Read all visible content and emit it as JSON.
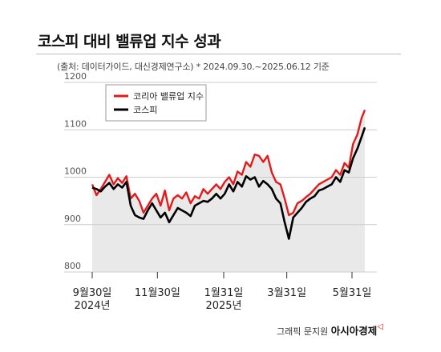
{
  "header": {
    "title": "코스피 대비 밸류업 지수 성과",
    "subtitle": "(출처: 데이터가이드, 대신경제연구소) * 2024.09.30.~2025.06.12 기준"
  },
  "footer": {
    "credit": "그래픽 문지원",
    "brand": "아시아경제",
    "brand_mark": "◁"
  },
  "colors": {
    "valueup": "#e31a1c",
    "kospi": "#000000",
    "fill": "#e9e9e9",
    "grid": "#cccccc"
  },
  "chart_data": {
    "type": "line",
    "title": "코스피 대비 밸류업 지수 성과",
    "ylim": [
      800,
      1200
    ],
    "yticks": [
      800,
      900,
      1000,
      1100,
      1200
    ],
    "x_range": [
      "2024-09-30",
      "2025-06-12"
    ],
    "x_tick_labels": [
      {
        "date": "2024-09-30",
        "lines": [
          "9월30일",
          "2024년"
        ]
      },
      {
        "date": "2024-11-30",
        "lines": [
          "11월30일"
        ]
      },
      {
        "date": "2025-01-31",
        "lines": [
          "1월31일",
          "2025년"
        ]
      },
      {
        "date": "2025-03-31",
        "lines": [
          "3월31일"
        ]
      },
      {
        "date": "2025-05-31",
        "lines": [
          "5월31일"
        ]
      }
    ],
    "legend_position": "top-left",
    "grid": false,
    "series": [
      {
        "name": "코리아 밸류업 지수",
        "color": "#e31a1c",
        "x": [
          "2024-09-30",
          "2024-10-04",
          "2024-10-08",
          "2024-10-12",
          "2024-10-16",
          "2024-10-20",
          "2024-10-24",
          "2024-10-28",
          "2024-11-01",
          "2024-11-05",
          "2024-11-09",
          "2024-11-13",
          "2024-11-17",
          "2024-11-21",
          "2024-11-25",
          "2024-11-29",
          "2024-12-03",
          "2024-12-07",
          "2024-12-11",
          "2024-12-15",
          "2024-12-19",
          "2024-12-23",
          "2024-12-27",
          "2024-12-31",
          "2025-01-04",
          "2025-01-08",
          "2025-01-12",
          "2025-01-16",
          "2025-01-20",
          "2025-01-24",
          "2025-01-28",
          "2025-02-01",
          "2025-02-05",
          "2025-02-09",
          "2025-02-13",
          "2025-02-17",
          "2025-02-21",
          "2025-02-25",
          "2025-03-01",
          "2025-03-05",
          "2025-03-09",
          "2025-03-13",
          "2025-03-17",
          "2025-03-21",
          "2025-03-25",
          "2025-03-29",
          "2025-04-02",
          "2025-04-06",
          "2025-04-10",
          "2025-04-14",
          "2025-04-18",
          "2025-04-22",
          "2025-04-26",
          "2025-04-30",
          "2025-05-04",
          "2025-05-08",
          "2025-05-12",
          "2025-05-16",
          "2025-05-20",
          "2025-05-24",
          "2025-05-28",
          "2025-06-01",
          "2025-06-05",
          "2025-06-09",
          "2025-06-12"
        ],
        "values": [
          985,
          962,
          975,
          990,
          1005,
          985,
          998,
          988,
          1002,
          955,
          965,
          950,
          925,
          940,
          955,
          965,
          940,
          972,
          930,
          955,
          962,
          955,
          968,
          945,
          960,
          955,
          975,
          965,
          975,
          985,
          975,
          990,
          1000,
          985,
          1012,
          1005,
          1032,
          1022,
          1048,
          1045,
          1032,
          1045,
          1010,
          990,
          985,
          955,
          920,
          925,
          945,
          950,
          958,
          965,
          975,
          985,
          990,
          995,
          1000,
          1015,
          1005,
          1030,
          1020,
          1070,
          1090,
          1125,
          1142
        ]
      },
      {
        "name": "코스피",
        "color": "#000000",
        "x": [
          "2024-09-30",
          "2024-10-04",
          "2024-10-08",
          "2024-10-12",
          "2024-10-16",
          "2024-10-20",
          "2024-10-24",
          "2024-10-28",
          "2024-11-01",
          "2024-11-05",
          "2024-11-09",
          "2024-11-13",
          "2024-11-17",
          "2024-11-21",
          "2024-11-25",
          "2024-11-29",
          "2024-12-03",
          "2024-12-07",
          "2024-12-11",
          "2024-12-15",
          "2024-12-19",
          "2024-12-23",
          "2024-12-27",
          "2024-12-31",
          "2025-01-04",
          "2025-01-08",
          "2025-01-12",
          "2025-01-16",
          "2025-01-20",
          "2025-01-24",
          "2025-01-28",
          "2025-02-01",
          "2025-02-05",
          "2025-02-09",
          "2025-02-13",
          "2025-02-17",
          "2025-02-21",
          "2025-02-25",
          "2025-03-01",
          "2025-03-05",
          "2025-03-09",
          "2025-03-13",
          "2025-03-17",
          "2025-03-21",
          "2025-03-25",
          "2025-03-29",
          "2025-04-02",
          "2025-04-06",
          "2025-04-10",
          "2025-04-14",
          "2025-04-18",
          "2025-04-22",
          "2025-04-26",
          "2025-04-30",
          "2025-05-04",
          "2025-05-08",
          "2025-05-12",
          "2025-05-16",
          "2025-05-20",
          "2025-05-24",
          "2025-05-28",
          "2025-06-01",
          "2025-06-05",
          "2025-06-09",
          "2025-06-12"
        ],
        "values": [
          978,
          975,
          970,
          980,
          988,
          975,
          985,
          978,
          990,
          940,
          920,
          915,
          912,
          930,
          945,
          930,
          915,
          925,
          905,
          920,
          935,
          930,
          925,
          918,
          940,
          945,
          950,
          948,
          955,
          965,
          955,
          965,
          985,
          970,
          990,
          980,
          1002,
          995,
          1000,
          980,
          992,
          985,
          975,
          955,
          945,
          905,
          870,
          915,
          925,
          935,
          948,
          955,
          960,
          972,
          975,
          980,
          985,
          1000,
          990,
          1015,
          1010,
          1040,
          1060,
          1085,
          1105
        ]
      }
    ]
  }
}
